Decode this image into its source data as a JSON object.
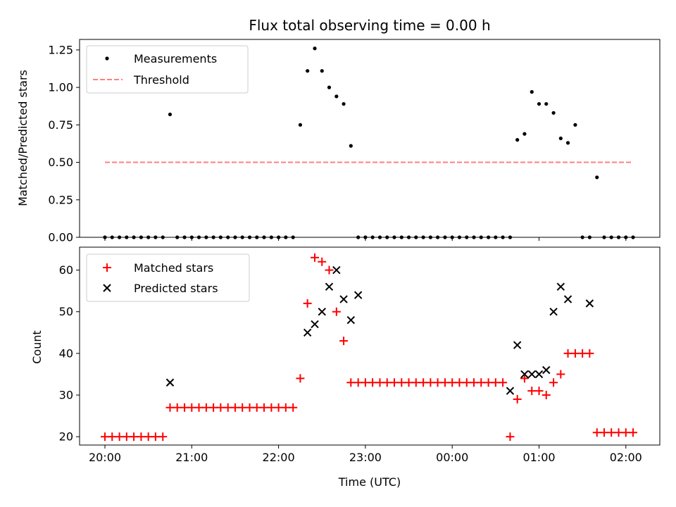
{
  "chart_data": [
    {
      "type": "scatter",
      "title": "Flux total observing time = 0.00 h",
      "xlabel": "",
      "ylabel": "Matched/Predicted stars",
      "ylim": [
        0,
        1.32
      ],
      "yticks": [
        "0.00",
        "0.25",
        "0.50",
        "0.75",
        "1.00",
        "1.25"
      ],
      "xticks": [
        "20:00",
        "21:00",
        "22:00",
        "23:00",
        "00:00",
        "01:00",
        "02:00"
      ],
      "legend": {
        "placement": "top-left",
        "entries": [
          "Measurements",
          "Threshold"
        ]
      },
      "colors": {
        "measurements": "#000000",
        "threshold": "#ff7f7f"
      },
      "threshold": {
        "name": "Threshold",
        "value": 0.5,
        "x_start_h": 0.0,
        "x_end_h": 6.08
      },
      "series": [
        {
          "name": "Measurements",
          "x_h": [
            0.0,
            0.083,
            0.167,
            0.25,
            0.333,
            0.417,
            0.5,
            0.583,
            0.667,
            0.75,
            0.833,
            0.917,
            1.0,
            1.083,
            1.167,
            1.25,
            1.333,
            1.417,
            1.5,
            1.583,
            1.667,
            1.75,
            1.833,
            1.917,
            2.0,
            2.083,
            2.167,
            2.25,
            2.333,
            2.417,
            2.5,
            2.583,
            2.667,
            2.75,
            2.833,
            2.917,
            3.0,
            3.083,
            3.167,
            3.25,
            3.333,
            3.417,
            3.5,
            3.583,
            3.667,
            3.75,
            3.833,
            3.917,
            4.0,
            4.083,
            4.167,
            4.25,
            4.333,
            4.417,
            4.5,
            4.583,
            4.667,
            4.75,
            4.833,
            4.917,
            5.0,
            5.083,
            5.167,
            5.25,
            5.333,
            5.417,
            5.5,
            5.583,
            5.667,
            5.75,
            5.833,
            5.917,
            6.0,
            6.083
          ],
          "values": [
            0,
            0,
            0,
            0,
            0,
            0,
            0,
            0,
            0,
            0.82,
            0,
            0,
            0,
            0,
            0,
            0,
            0,
            0,
            0,
            0,
            0,
            0,
            0,
            0,
            0,
            0,
            0,
            0.75,
            1.11,
            1.26,
            1.11,
            1.0,
            0.94,
            0.89,
            0.61,
            0,
            0,
            0,
            0,
            0,
            0,
            0,
            0,
            0,
            0,
            0,
            0,
            0,
            0,
            0,
            0,
            0,
            0,
            0,
            0,
            0,
            0,
            0.65,
            0.69,
            0.97,
            0.89,
            0.89,
            0.83,
            0.66,
            0.63,
            0.75,
            0,
            0,
            0.4,
            0,
            0,
            0,
            0,
            0
          ]
        }
      ]
    },
    {
      "type": "scatter",
      "title": "",
      "xlabel": "Time (UTC)",
      "ylabel": "Count",
      "ylim": [
        18,
        65.5
      ],
      "yticks": [
        "20",
        "30",
        "40",
        "50",
        "60"
      ],
      "xticks": [
        "20:00",
        "21:00",
        "22:00",
        "23:00",
        "00:00",
        "01:00",
        "02:00"
      ],
      "legend": {
        "placement": "top-left",
        "entries": [
          "Matched stars",
          "Predicted stars"
        ]
      },
      "colors": {
        "matched": "#ff0000",
        "predicted": "#000000"
      },
      "series": [
        {
          "name": "Matched stars",
          "marker": "plus",
          "x_h": [
            0.0,
            0.083,
            0.167,
            0.25,
            0.333,
            0.417,
            0.5,
            0.583,
            0.667,
            0.75,
            0.833,
            0.917,
            1.0,
            1.083,
            1.167,
            1.25,
            1.333,
            1.417,
            1.5,
            1.583,
            1.667,
            1.75,
            1.833,
            1.917,
            2.0,
            2.083,
            2.167,
            2.25,
            2.333,
            2.417,
            2.5,
            2.583,
            2.667,
            2.75,
            2.833,
            2.917,
            3.0,
            3.083,
            3.167,
            3.25,
            3.333,
            3.417,
            3.5,
            3.583,
            3.667,
            3.75,
            3.833,
            3.917,
            4.0,
            4.083,
            4.167,
            4.25,
            4.333,
            4.417,
            4.5,
            4.583,
            4.667,
            4.75,
            4.833,
            4.917,
            5.0,
            5.083,
            5.167,
            5.25,
            5.333,
            5.417,
            5.5,
            5.583,
            5.667,
            5.75,
            5.833,
            5.917,
            6.0,
            6.083
          ],
          "values": [
            20,
            20,
            20,
            20,
            20,
            20,
            20,
            20,
            20,
            27,
            27,
            27,
            27,
            27,
            27,
            27,
            27,
            27,
            27,
            27,
            27,
            27,
            27,
            27,
            27,
            27,
            27,
            34,
            52,
            63,
            62,
            60,
            50,
            43,
            33,
            33,
            33,
            33,
            33,
            33,
            33,
            33,
            33,
            33,
            33,
            33,
            33,
            33,
            33,
            33,
            33,
            33,
            33,
            33,
            33,
            33,
            20,
            29,
            34,
            31,
            31,
            30,
            33,
            35,
            40,
            40,
            40,
            40,
            21,
            21,
            21,
            21,
            21,
            21
          ]
        },
        {
          "name": "Predicted stars",
          "marker": "x",
          "x_h": [
            0.75,
            2.333,
            2.417,
            2.5,
            2.583,
            2.667,
            2.75,
            2.833,
            2.917,
            4.667,
            4.75,
            4.833,
            4.917,
            5.0,
            5.083,
            5.167,
            5.25,
            5.333,
            5.583
          ],
          "values": [
            33,
            45,
            47,
            50,
            56,
            60,
            53,
            48,
            54,
            31,
            42,
            35,
            35,
            35,
            36,
            50,
            56,
            53,
            52
          ]
        }
      ]
    }
  ]
}
